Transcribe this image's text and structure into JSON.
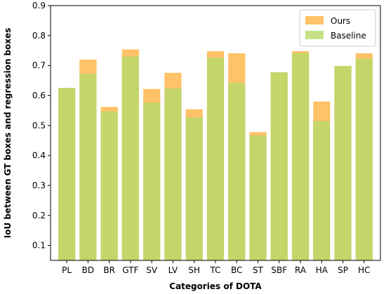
{
  "chart_data": {
    "type": "bar",
    "title": "",
    "xlabel": "Categories of DOTA",
    "ylabel": "IoU between GT boxes and regression boxes",
    "ylim": [
      0.05,
      0.9
    ],
    "yticks": [
      0.1,
      0.2,
      0.3,
      0.4,
      0.5,
      0.6,
      0.7,
      0.8,
      0.9
    ],
    "ytick_labels": [
      "0.1",
      "0.2",
      "0.3",
      "0.4",
      "0.5",
      "0.6",
      "0.7",
      "0.8",
      "0.9"
    ],
    "grid": false,
    "legend_position": "top-right",
    "categories": [
      "PL",
      "BD",
      "BR",
      "GTF",
      "SV",
      "LV",
      "SH",
      "TC",
      "BC",
      "ST",
      "SBF",
      "RA",
      "HA",
      "SP",
      "HC"
    ],
    "series": [
      {
        "name": "Ours",
        "color": "#ffb74d",
        "values": [
          0.625,
          0.72,
          0.562,
          0.754,
          0.622,
          0.676,
          0.554,
          0.748,
          0.741,
          0.478,
          0.676,
          0.748,
          0.58,
          0.697,
          0.741
        ]
      },
      {
        "name": "Baseline",
        "color": "#b5d96a",
        "values": [
          0.625,
          0.672,
          0.547,
          0.73,
          0.576,
          0.624,
          0.527,
          0.726,
          0.642,
          0.467,
          0.678,
          0.741,
          0.515,
          0.699,
          0.723
        ]
      }
    ]
  }
}
